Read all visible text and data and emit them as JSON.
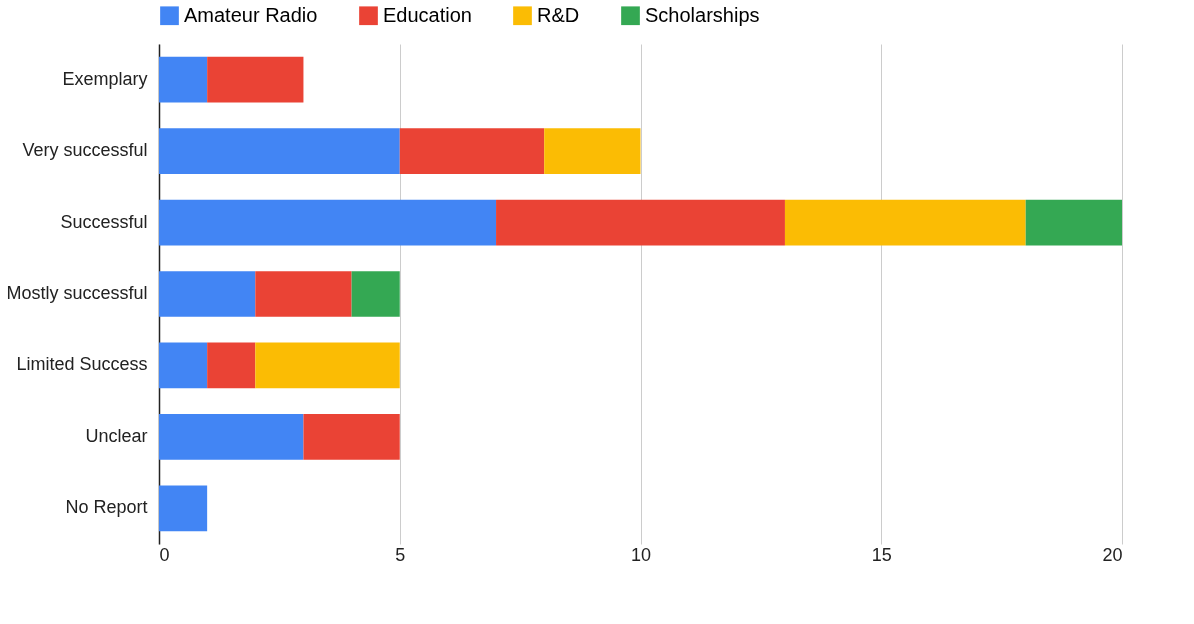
{
  "chart_data": {
    "type": "bar",
    "orientation": "horizontal",
    "stacked": true,
    "categories": [
      "Exemplary",
      "Very successful",
      "Successful",
      "Mostly successful",
      "Limited Success",
      "Unclear",
      "No Report"
    ],
    "series": [
      {
        "name": "Amateur Radio",
        "color": "#4285f4",
        "values": [
          1,
          5,
          7,
          2,
          1,
          3,
          1
        ]
      },
      {
        "name": "Education",
        "color": "#ea4335",
        "values": [
          2,
          3,
          6,
          2,
          1,
          2,
          null
        ]
      },
      {
        "name": "R&D",
        "color": "#fbbc04",
        "values": [
          null,
          2,
          5,
          null,
          3,
          null,
          null
        ]
      },
      {
        "name": "Scholarships",
        "color": "#34a853",
        "values": [
          null,
          null,
          2,
          1,
          null,
          null,
          null
        ]
      }
    ],
    "xlim": [
      0,
      20
    ],
    "xticks": [
      0,
      5,
      10,
      15,
      20
    ],
    "grid": "x",
    "legend": "top"
  }
}
